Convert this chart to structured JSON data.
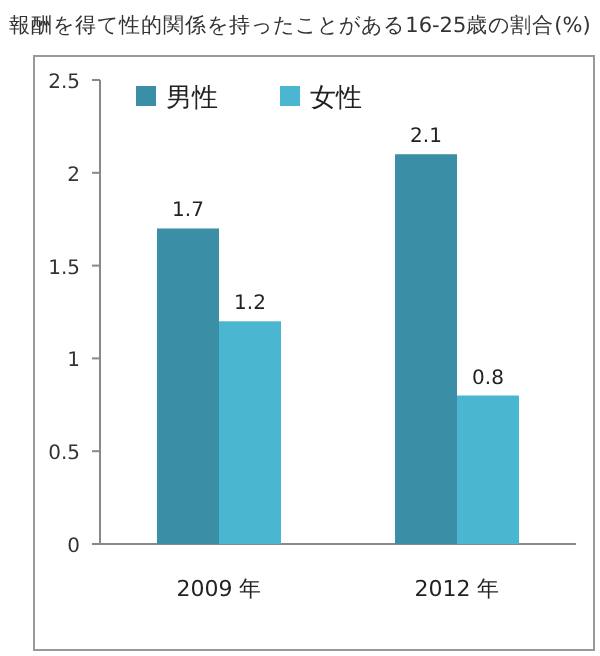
{
  "chart_data": {
    "type": "bar",
    "title": "報酬を得て性的関係を持ったことがある16-25歳の割合(%)",
    "categories": [
      "2009 年",
      "2012 年"
    ],
    "series": [
      {
        "name": "男性",
        "color": "#3a8ea6",
        "values": [
          1.7,
          2.1
        ]
      },
      {
        "name": "女性",
        "color": "#4ab6cf",
        "values": [
          1.2,
          0.8
        ]
      }
    ],
    "ylim": [
      0,
      2.5
    ],
    "yticks": [
      0,
      0.5,
      1,
      1.5,
      2,
      2.5
    ],
    "data_labels": true,
    "legend": "top left",
    "grid": false
  }
}
